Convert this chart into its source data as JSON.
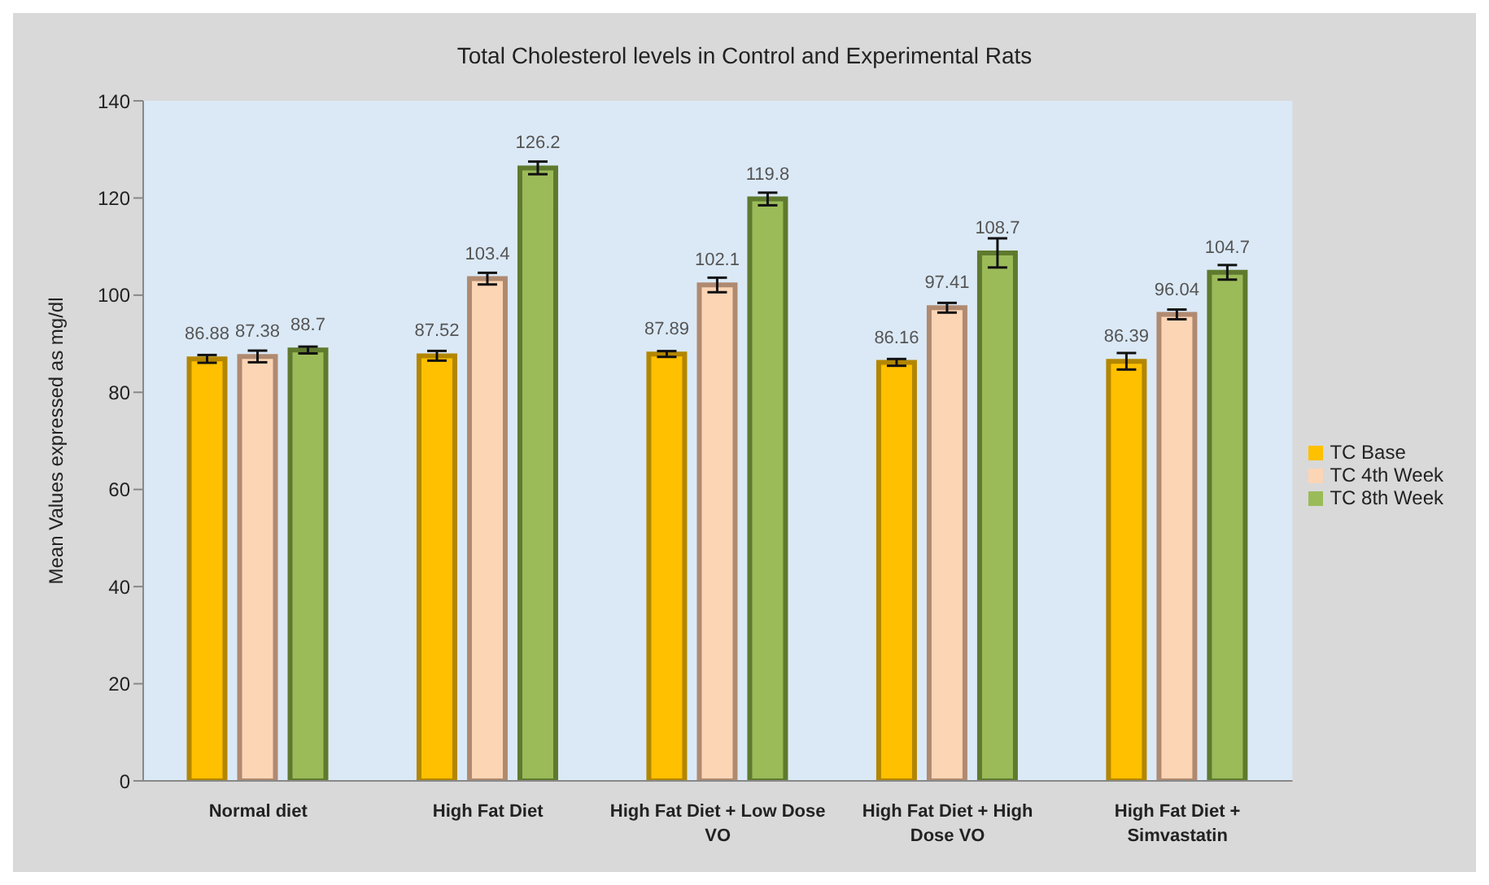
{
  "chart_data": {
    "type": "bar",
    "title": "Total Cholesterol levels in Control and Experimental Rats",
    "ylabel": "Mean Values expressed as mg/dl",
    "categories": [
      "Normal diet",
      "High Fat Diet",
      "High Fat Diet + Low Dose VO",
      "High Fat Diet + High Dose VO",
      "High Fat Diet + Simvastatin"
    ],
    "series": [
      {
        "name": "TC Base",
        "color": "#ffc000",
        "values": [
          86.88,
          87.52,
          87.89,
          86.16,
          86.39
        ],
        "errors": [
          0.8,
          1,
          0.6,
          0.7,
          1.7
        ]
      },
      {
        "name": "TC 4th Week",
        "color": "#fcd5b5",
        "values": [
          87.38,
          103.4,
          102.1,
          97.41,
          96.04
        ],
        "errors": [
          1.2,
          1.2,
          1.5,
          1,
          1
        ]
      },
      {
        "name": "TC 8th Week",
        "color": "#9bbb59",
        "values": [
          88.7,
          126.2,
          119.8,
          108.7,
          104.7
        ],
        "errors": [
          0.7,
          1.3,
          1.3,
          3,
          1.5
        ]
      }
    ],
    "ylim": [
      0,
      140
    ],
    "yticks": [
      0,
      20,
      40,
      60,
      80,
      100,
      120,
      140
    ],
    "data_labels": true,
    "legend": "right",
    "grid": false
  }
}
